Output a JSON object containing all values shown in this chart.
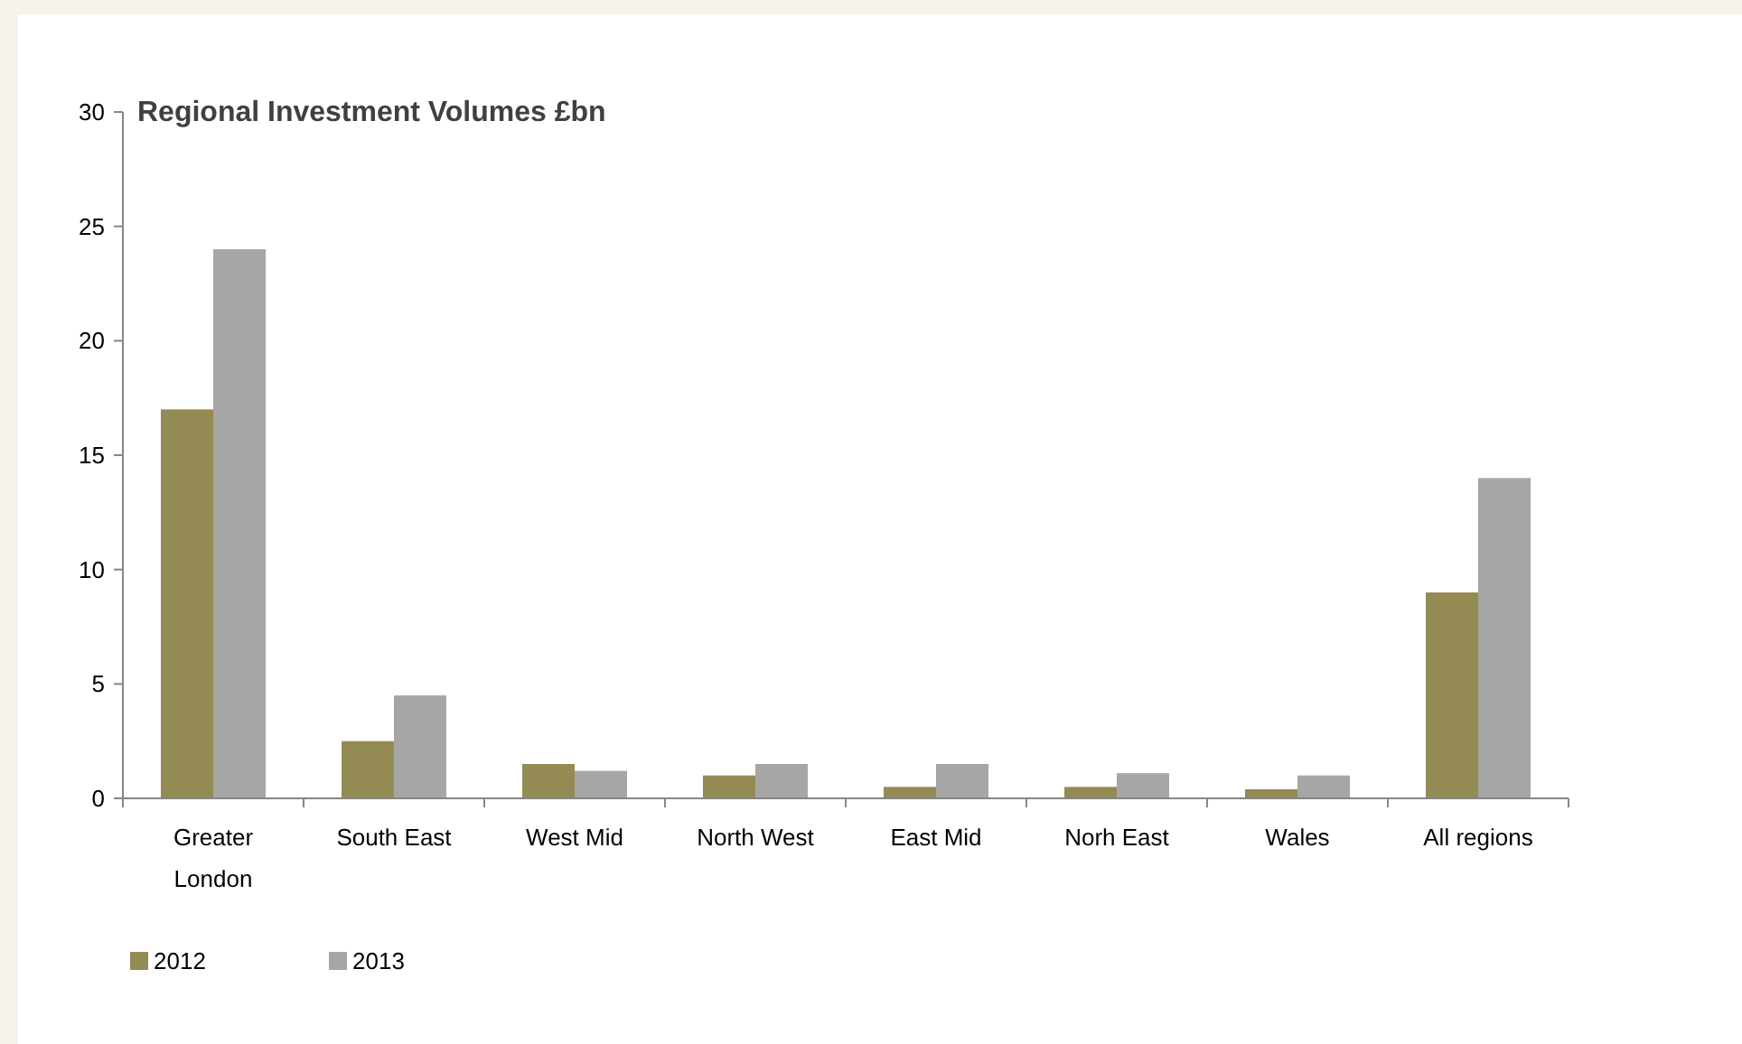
{
  "chart_data": {
    "type": "bar",
    "title": "Regional Investment Volumes £bn",
    "categories": [
      "Greater London",
      "South East",
      "West Mid",
      "North West",
      "East Mid",
      "Norh East",
      "Wales",
      "All regions"
    ],
    "series": [
      {
        "name": "2012",
        "color": "#948a54",
        "values": [
          17,
          2.5,
          1.5,
          1,
          0.5,
          0.5,
          0.4,
          9
        ]
      },
      {
        "name": "2013",
        "color": "#a6a6a6",
        "values": [
          24,
          4.5,
          1.2,
          1.5,
          1.5,
          1.1,
          1,
          14
        ]
      }
    ],
    "ylim": [
      0,
      30
    ],
    "yticks": [
      0,
      5,
      10,
      15,
      20,
      25,
      30
    ],
    "grid": false,
    "legend": "bottom left"
  }
}
